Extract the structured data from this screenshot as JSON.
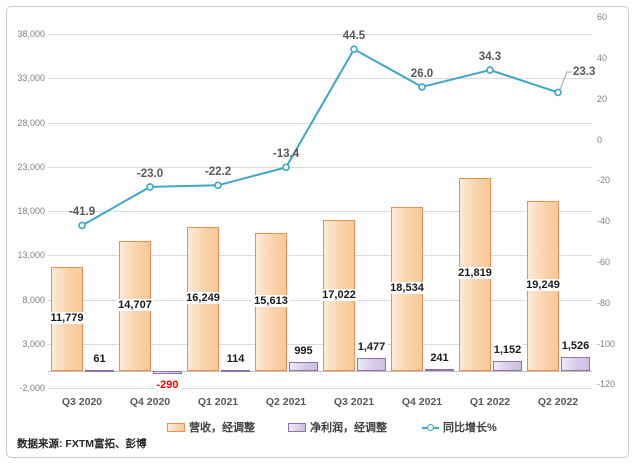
{
  "source_note": "数据来源: FXTM富拓、彭博",
  "colors": {
    "revenue_fill": "#F9C89A",
    "revenue_border": "#EB9150",
    "profit_fill": "#CEBFE2",
    "profit_border": "#8C72B0",
    "growth_line": "#3FA6C7",
    "gridline": "#DCDCDC",
    "axis_text": "#808080",
    "label_text": "#1A1A1A",
    "negative_label": "#FF0000",
    "leader_line": "#A6A6A6"
  },
  "chart_data": {
    "type": "combo-bar-line",
    "grid": true,
    "legend_position": "bottom",
    "categories": [
      "Q3 2020",
      "Q4 2020",
      "Q1 2021",
      "Q2 2021",
      "Q3 2021",
      "Q4 2021",
      "Q1 2022",
      "Q2 2022"
    ],
    "series": [
      {
        "name": "营收，经调整",
        "type": "bar",
        "axis": "left",
        "values": [
          11779,
          14707,
          16249,
          15613,
          17022,
          18534,
          21819,
          19249
        ],
        "labels": [
          "11,779",
          "14,707",
          "16,249",
          "15,613",
          "17,022",
          "18,534",
          "21,819",
          "19,249"
        ]
      },
      {
        "name": "净利润，经调整",
        "type": "bar",
        "axis": "left",
        "values": [
          61,
          -290,
          114,
          995,
          1477,
          241,
          1152,
          1526
        ],
        "labels": [
          "61",
          "-290",
          "114",
          "995",
          "1,477",
          "241",
          "1,152",
          "1,526"
        ]
      },
      {
        "name": "同比增长%",
        "type": "line",
        "axis": "right",
        "values": [
          -41.9,
          -23.0,
          -22.2,
          -13.4,
          44.5,
          26.0,
          34.3,
          23.3
        ],
        "labels": [
          "-41.9",
          "-23.0",
          "-22.2",
          "-13.4",
          "44.5",
          "26.0",
          "34.3",
          "23.3"
        ],
        "last_label_callout": true
      }
    ],
    "left_axis": {
      "min": -2000,
      "max": 38000,
      "tick_values": [
        38000,
        33000,
        28000,
        23000,
        18000,
        13000,
        8000,
        3000,
        -2000
      ],
      "tick_labels": [
        "38,000",
        "33,000",
        "28,000",
        "23,000",
        "18,000",
        "13,000",
        "8,000",
        "3,000",
        "-2,000"
      ]
    },
    "right_axis": {
      "min": -120,
      "max": 60,
      "tick_values": [
        60,
        40,
        20,
        0,
        -20,
        -40,
        -60,
        -80,
        -100,
        -120
      ],
      "tick_labels": [
        "60",
        "40",
        "20",
        "0",
        "-20",
        "-40",
        "-60",
        "-80",
        "-100",
        "-120"
      ]
    }
  },
  "legend": {
    "items": [
      {
        "label": "营收，经调整"
      },
      {
        "label": "净利润，经调整"
      },
      {
        "label": "同比增长%"
      }
    ]
  }
}
